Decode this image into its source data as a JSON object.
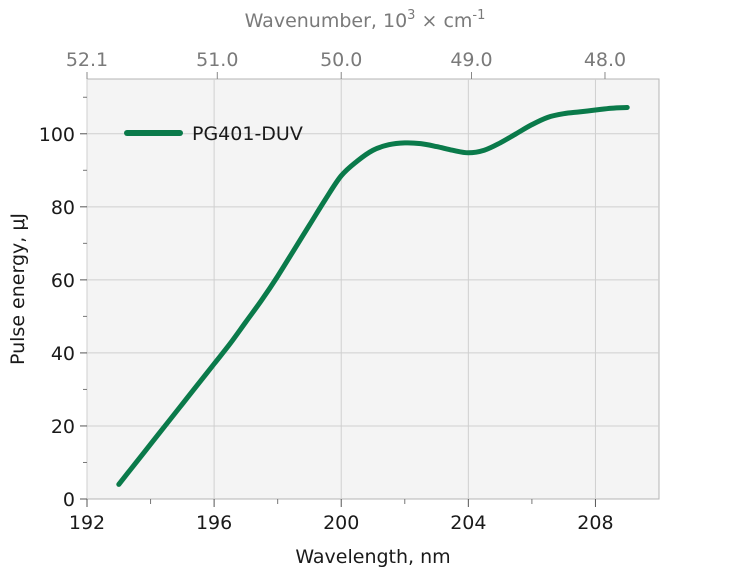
{
  "chart_data": {
    "type": "line",
    "xlabel": "Wavelength, nm",
    "ylabel": "Pulse energy, μJ",
    "top_axis": {
      "label_prefix": "Wavenumber, 10",
      "label_sup1": "3",
      "label_mid": " × cm",
      "label_sup2": "-1",
      "ticks": [
        "52.1",
        "51.0",
        "50.0",
        "49.0",
        "48.0"
      ],
      "tick_wavelengths": [
        192,
        196.1,
        200.0,
        204.1,
        208.3
      ]
    },
    "xlim": [
      192,
      210
    ],
    "ylim": [
      0,
      115
    ],
    "x_ticks": [
      "192",
      "196",
      "200",
      "204",
      "208"
    ],
    "y_ticks": [
      "0",
      "20",
      "40",
      "60",
      "80",
      "100"
    ],
    "grid": true,
    "legend_position": "top-left",
    "series": [
      {
        "name": "PG401-DUV",
        "color": "#0a7a4a",
        "x": [
          193.0,
          193.5,
          194.0,
          194.5,
          195.0,
          195.5,
          196.0,
          196.5,
          197.0,
          197.5,
          198.0,
          198.5,
          199.0,
          199.5,
          200.0,
          200.5,
          201.0,
          201.5,
          202.0,
          202.5,
          203.0,
          203.5,
          204.0,
          204.5,
          205.0,
          205.5,
          206.0,
          206.5,
          207.0,
          207.5,
          208.0,
          208.5,
          209.0
        ],
        "y": [
          4,
          9.5,
          15,
          20.5,
          26,
          31.5,
          37,
          42.5,
          48.5,
          54.5,
          61,
          68,
          75,
          82,
          88.5,
          92.5,
          95.5,
          97,
          97.5,
          97.3,
          96.5,
          95.5,
          94.8,
          95.5,
          97.5,
          100,
          102.5,
          104.5,
          105.5,
          106,
          106.5,
          107,
          107.2
        ]
      }
    ]
  }
}
